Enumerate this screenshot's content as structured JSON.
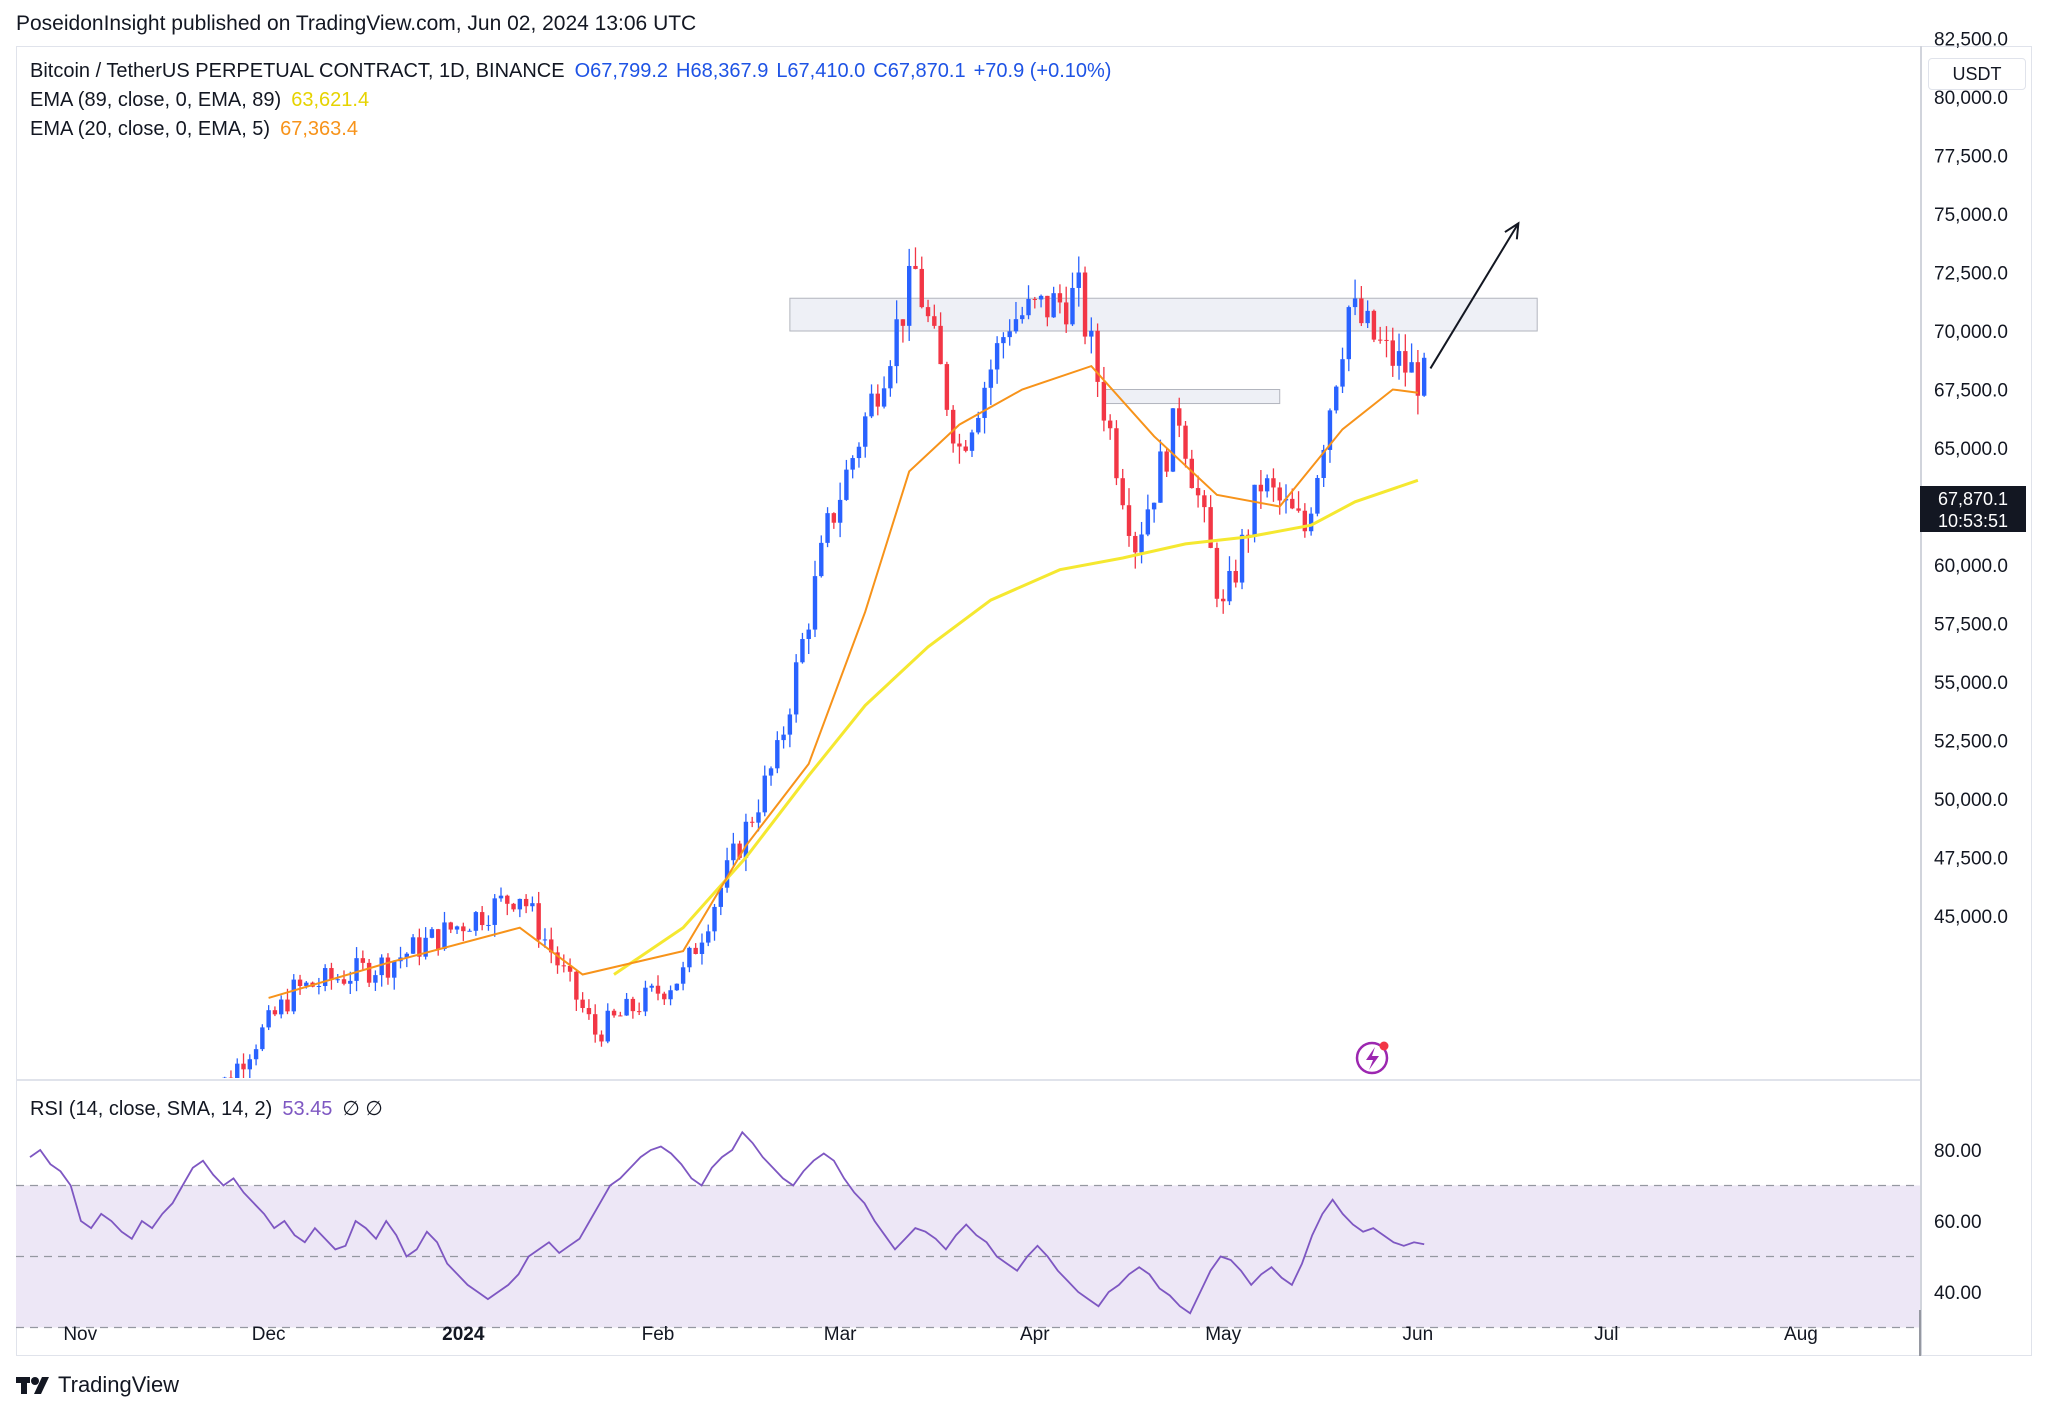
{
  "header": {
    "published": "PoseidonInsight published on TradingView.com, Jun 02, 2024 13:06 UTC"
  },
  "legend": {
    "symbol": "Bitcoin / TetherUS PERPETUAL CONTRACT, 1D, BINANCE",
    "open": "O67,799.2",
    "high": "H68,367.9",
    "low": "L67,410.0",
    "close": "C67,870.1",
    "change": "+70.9 (+0.10%)",
    "ema1_label": "EMA (89, close, 0, EMA, 89)",
    "ema1_value": "63,621.4",
    "ema2_label": "EMA (20, close, 0, EMA, 5)",
    "ema2_value": "67,363.4",
    "rsi_label": "RSI (14, close, SMA, 14, 2)",
    "rsi_value": "53.45",
    "rsi_extra": "∅ ∅"
  },
  "currency": "USDT",
  "last_price": {
    "price": "67,870.1",
    "countdown": "10:53:51"
  },
  "colors": {
    "up": "#2962ff",
    "down": "#f23645",
    "ema89": "#f5e830",
    "ema20": "#f7931a",
    "rsi": "#7e57c2",
    "rsi_band": "#ede7f6",
    "zone": "#e3e6f0"
  },
  "footer": {
    "brand": "TradingView"
  },
  "chart_data": [
    {
      "type": "candlestick",
      "title": "Bitcoin / TetherUS PERPETUAL CONTRACT, 1D, BINANCE",
      "y_ticks": [
        "45,000.0",
        "47,500.0",
        "50,000.0",
        "52,500.0",
        "55,000.0",
        "57,500.0",
        "60,000.0",
        "62,500.0",
        "65,000.0",
        "67,500.0",
        "70,000.0",
        "72,500.0",
        "75,000.0",
        "77,500.0",
        "80,000.0",
        "82,500.0"
      ],
      "x_ticks": [
        "Nov",
        "Dec",
        "2024",
        "Feb",
        "Mar",
        "Apr",
        "May",
        "Jun",
        "Jul",
        "Aug"
      ],
      "ylim": [
        43000,
        86000
      ],
      "series": [
        {
          "name": "EMA (89, close, 0, EMA, 89)",
          "points": [
            [
              "2024-01-25",
              42500
            ],
            [
              "2024-02-05",
              44500
            ],
            [
              "2024-02-15",
              47500
            ],
            [
              "2024-02-25",
              51000
            ],
            [
              "2024-03-05",
              54000
            ],
            [
              "2024-03-15",
              56500
            ],
            [
              "2024-03-25",
              58500
            ],
            [
              "2024-04-05",
              59800
            ],
            [
              "2024-04-15",
              60300
            ],
            [
              "2024-04-25",
              60900
            ],
            [
              "2024-05-05",
              61200
            ],
            [
              "2024-05-15",
              61700
            ],
            [
              "2024-05-22",
              62700
            ],
            [
              "2024-06-01",
              63621
            ]
          ]
        },
        {
          "name": "EMA (20, close, 0, EMA, 5)",
          "points": [
            [
              "2023-12-01",
              41500
            ],
            [
              "2023-12-20",
              43000
            ],
            [
              "2024-01-10",
              44500
            ],
            [
              "2024-01-20",
              42500
            ],
            [
              "2024-02-05",
              43500
            ],
            [
              "2024-02-15",
              48000
            ],
            [
              "2024-02-25",
              51500
            ],
            [
              "2024-03-05",
              58000
            ],
            [
              "2024-03-12",
              64000
            ],
            [
              "2024-03-20",
              66000
            ],
            [
              "2024-03-30",
              67500
            ],
            [
              "2024-04-10",
              68500
            ],
            [
              "2024-04-20",
              65500
            ],
            [
              "2024-04-30",
              63000
            ],
            [
              "2024-05-10",
              62500
            ],
            [
              "2024-05-20",
              65800
            ],
            [
              "2024-05-28",
              67500
            ],
            [
              "2024-06-01",
              67363
            ]
          ]
        }
      ],
      "zones": [
        {
          "from": "2024-02-22",
          "to": "2024-06-20",
          "low": 70000,
          "high": 71400
        },
        {
          "from": "2024-04-12",
          "to": "2024-05-10",
          "low": 66900,
          "high": 67500
        }
      ],
      "annotation": {
        "type": "arrow",
        "from": [
          "2024-06-03",
          68400
        ],
        "to": [
          "2024-06-17",
          74600
        ]
      },
      "last_price": 67870.1
    },
    {
      "type": "line",
      "name": "RSI (14, close, SMA, 14, 2)",
      "y_ticks": [
        "40.00",
        "60.00",
        "80.00"
      ],
      "bands": [
        30,
        50,
        70
      ],
      "ylim": [
        28,
        88
      ],
      "values": [
        78,
        80,
        76,
        74,
        70,
        60,
        58,
        62,
        60,
        57,
        55,
        60,
        58,
        62,
        65,
        70,
        75,
        77,
        73,
        70,
        72,
        68,
        65,
        62,
        58,
        60,
        56,
        54,
        58,
        55,
        52,
        53,
        60,
        58,
        55,
        60,
        56,
        50,
        52,
        57,
        54,
        48,
        45,
        42,
        40,
        38,
        40,
        42,
        45,
        50,
        52,
        54,
        51,
        53,
        55,
        60,
        65,
        70,
        72,
        75,
        78,
        80,
        81,
        79,
        76,
        72,
        70,
        75,
        78,
        80,
        85,
        82,
        78,
        75,
        72,
        70,
        74,
        77,
        79,
        77,
        72,
        68,
        65,
        60,
        56,
        52,
        55,
        58,
        57,
        55,
        52,
        56,
        59,
        56,
        54,
        50,
        48,
        46,
        50,
        53,
        50,
        46,
        43,
        40,
        38,
        36,
        40,
        42,
        45,
        47,
        45,
        41,
        39,
        36,
        34,
        40,
        46,
        50,
        49,
        46,
        42,
        45,
        47,
        44,
        42,
        48,
        56,
        62,
        66,
        62,
        59,
        57,
        58,
        56,
        54,
        53,
        54,
        53.45
      ]
    }
  ]
}
